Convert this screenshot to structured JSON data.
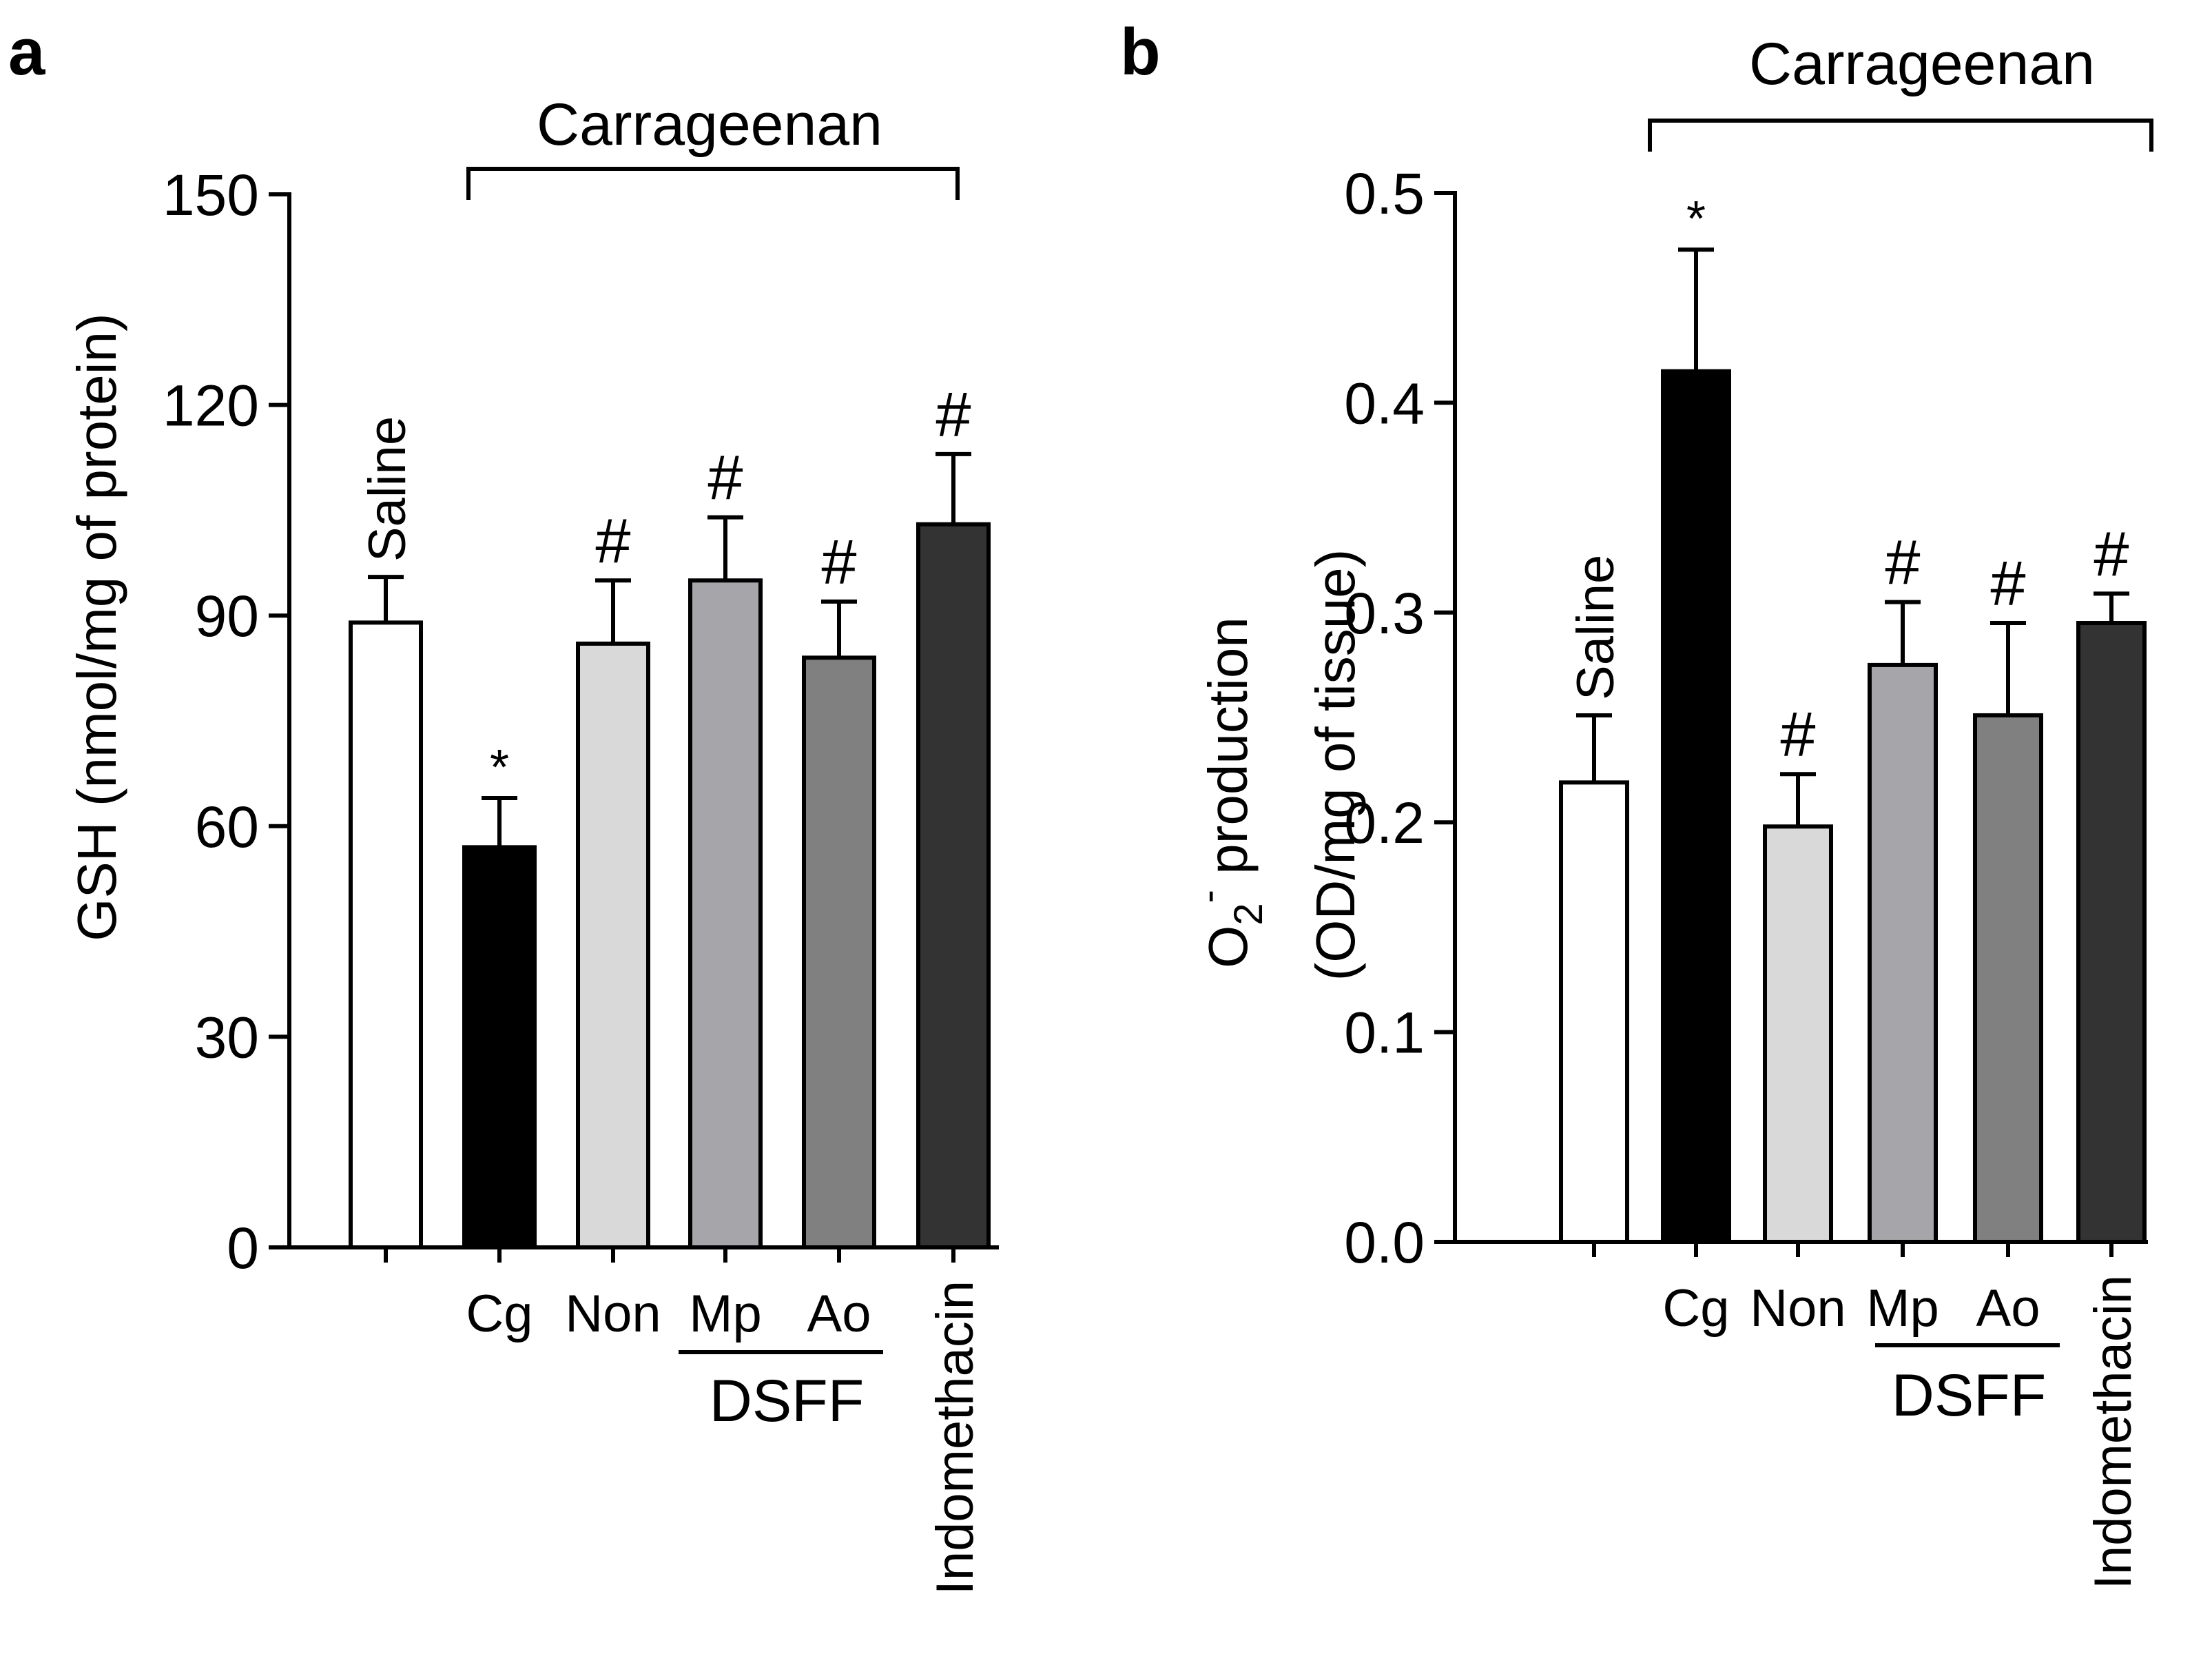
{
  "chart_data": [
    {
      "type": "bar",
      "panel": "a",
      "ylabel": "GSH (nmol/mg of protein)",
      "ylim": [
        0,
        150
      ],
      "yticks": [
        "0",
        "30",
        "60",
        "90",
        "120",
        "150"
      ],
      "group_label": "Carrageenan",
      "subgroup_label": "DSFF",
      "categories": [
        "Saline",
        "Cg",
        "Non",
        "Mp",
        "Ao",
        "Indomethacin"
      ],
      "values": [
        89,
        57,
        86,
        95,
        84,
        103
      ],
      "errors": [
        6.5,
        7,
        9,
        9,
        8,
        10
      ],
      "markers": [
        "",
        "*",
        "#",
        "#",
        "#",
        "#"
      ],
      "colors": [
        "#ffffff",
        "#000000",
        "#d9d9d9",
        "#a6a6aa",
        "#808080",
        "#333333"
      ]
    },
    {
      "type": "bar",
      "panel": "b",
      "ylabel_line1": "O2- production",
      "ylabel_line2": "(OD/mg of tissue)",
      "ylim": [
        0,
        0.5
      ],
      "yticks": [
        "0.0",
        "0.1",
        "0.2",
        "0.3",
        "0.4",
        "0.5"
      ],
      "group_label": "Carrageenan",
      "subgroup_label": "DSFF",
      "categories": [
        "Saline",
        "Cg",
        "Non",
        "Mp",
        "Ao",
        "Indomethacin"
      ],
      "values": [
        0.219,
        0.415,
        0.198,
        0.275,
        0.251,
        0.295
      ],
      "errors": [
        0.032,
        0.058,
        0.025,
        0.03,
        0.044,
        0.014
      ],
      "markers": [
        "",
        "*",
        "#",
        "#",
        "#",
        "#"
      ],
      "colors": [
        "#ffffff",
        "#000000",
        "#d9d9d9",
        "#a6a6aa",
        "#808080",
        "#333333"
      ]
    }
  ]
}
